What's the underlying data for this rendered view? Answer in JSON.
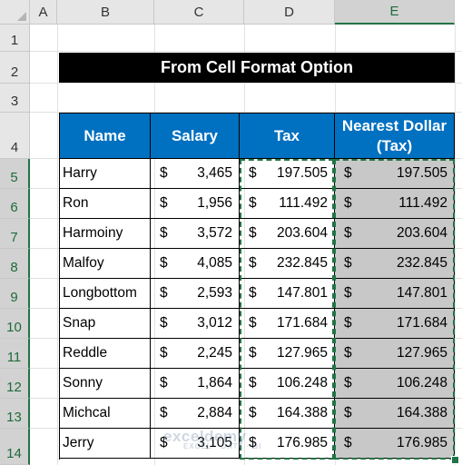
{
  "columns": [
    "A",
    "B",
    "C",
    "D",
    "E"
  ],
  "rows": [
    "1",
    "2",
    "3",
    "4",
    "5",
    "6",
    "7",
    "8",
    "9",
    "10",
    "11",
    "12",
    "13",
    "14"
  ],
  "title": "From Cell Format Option",
  "headers": {
    "name": "Name",
    "salary": "Salary",
    "tax": "Tax",
    "nearest": "Nearest Dollar (Tax)"
  },
  "currency": "$",
  "records": [
    {
      "name": "Harry",
      "salary": "3,465",
      "tax": "197.505",
      "nearest": "197.505"
    },
    {
      "name": "Ron",
      "salary": "1,956",
      "tax": "111.492",
      "nearest": "111.492"
    },
    {
      "name": "Harmoiny",
      "salary": "3,572",
      "tax": "203.604",
      "nearest": "203.604"
    },
    {
      "name": "Malfoy",
      "salary": "4,085",
      "tax": "232.845",
      "nearest": "232.845"
    },
    {
      "name": "Longbottom",
      "salary": "2,593",
      "tax": "147.801",
      "nearest": "147.801"
    },
    {
      "name": "Snap",
      "salary": "3,012",
      "tax": "171.684",
      "nearest": "171.684"
    },
    {
      "name": "Reddle",
      "salary": "2,245",
      "tax": "127.965",
      "nearest": "127.965"
    },
    {
      "name": "Sonny",
      "salary": "1,864",
      "tax": "106.248",
      "nearest": "106.248"
    },
    {
      "name": "Michcal",
      "salary": "2,884",
      "tax": "164.388",
      "nearest": "164.388"
    },
    {
      "name": "Jerry",
      "salary": "3,105",
      "tax": "176.985",
      "nearest": "176.985"
    }
  ],
  "watermark": {
    "brand": "exceldemy",
    "tagline": "EXCEL · DATA · BI"
  },
  "colors": {
    "header_blue": "#0070c0",
    "selection_green": "#217346",
    "selected_fill": "#c8c8c8"
  }
}
